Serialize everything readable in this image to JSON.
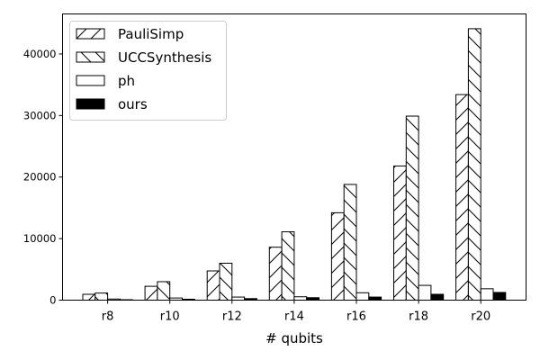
{
  "chart_data": {
    "type": "bar",
    "title": "",
    "xlabel": "# qubits",
    "ylabel": "",
    "categories": [
      "r8",
      "r10",
      "r12",
      "r14",
      "r16",
      "r18",
      "r20"
    ],
    "ylim": [
      0,
      46500
    ],
    "yticks": [
      0,
      10000,
      20000,
      30000,
      40000
    ],
    "grid": false,
    "legend_position": "top-left",
    "series": [
      {
        "name": "PauliSimp",
        "pattern": "forward-hatch",
        "values": [
          950,
          2250,
          4750,
          8600,
          14200,
          21800,
          33400
        ]
      },
      {
        "name": "UCCSynthesis",
        "pattern": "backward-hatch",
        "values": [
          1150,
          3000,
          6000,
          11100,
          18800,
          29900,
          44100
        ]
      },
      {
        "name": "ph",
        "pattern": "empty",
        "values": [
          180,
          350,
          500,
          550,
          1200,
          2400,
          1850
        ]
      },
      {
        "name": "ours",
        "pattern": "solid-black",
        "values": [
          70,
          150,
          250,
          400,
          500,
          950,
          1250
        ]
      }
    ],
    "colors": {
      "bar_edge": "#000000",
      "bar_fill": "#ffffff",
      "ours_fill": "#000000"
    }
  }
}
